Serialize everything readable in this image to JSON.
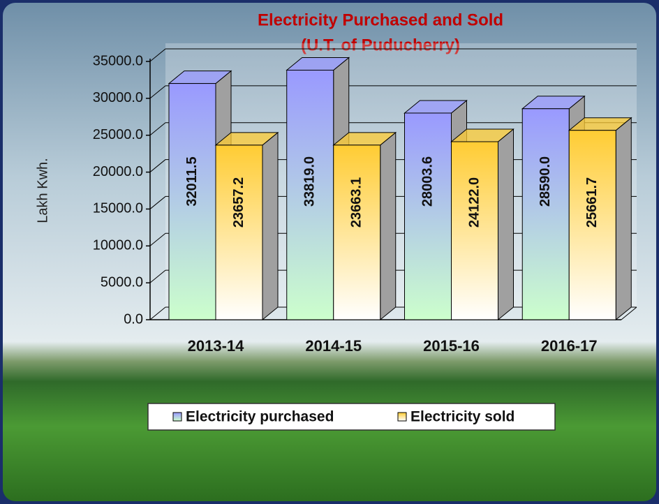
{
  "chart_data": {
    "type": "bar3d",
    "title": "Electricity Purchased and Sold",
    "subtitle": "(U.T. of Puducherry)",
    "y_label": "Lakh Kwh.",
    "categories": [
      "2013-14",
      "2014-15",
      "2015-16",
      "2016-17"
    ],
    "series": [
      {
        "name": "Electricity purchased",
        "color": "#9999ff",
        "values": [
          32011.5,
          33819.0,
          28003.6,
          28590.0
        ],
        "value_labels": [
          "32011.5",
          "33819.0",
          "28003.6",
          "28590.0"
        ]
      },
      {
        "name": "Electricity sold",
        "color": "#ffcc33",
        "values": [
          23657.2,
          23663.1,
          24122.0,
          25661.7
        ],
        "value_labels": [
          "23657.2",
          "23663.1",
          "24122.0",
          "25661.7"
        ]
      }
    ],
    "ylim": [
      0,
      35000
    ],
    "yticks": [
      {
        "value": 0,
        "label": "0.0"
      },
      {
        "value": 5000,
        "label": "5000.0"
      },
      {
        "value": 10000,
        "label": "10000.0"
      },
      {
        "value": 15000,
        "label": "15000.0"
      },
      {
        "value": 20000,
        "label": "20000.0"
      },
      {
        "value": 25000,
        "label": "25000.0"
      },
      {
        "value": 30000,
        "label": "30000.0"
      },
      {
        "value": 35000,
        "label": "35000.0"
      }
    ],
    "grid": true,
    "legend": "bottom"
  }
}
